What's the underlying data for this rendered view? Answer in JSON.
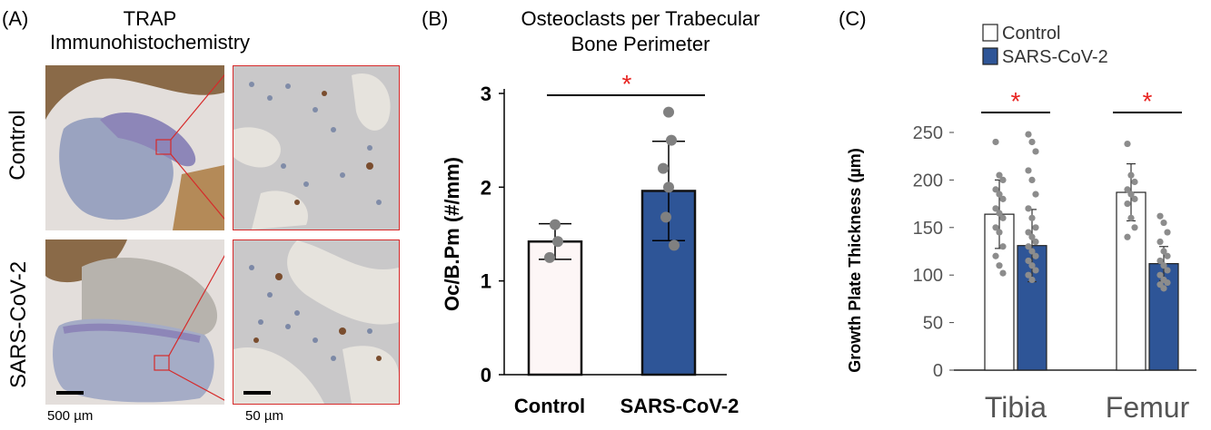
{
  "panel_a": {
    "letter": "(A)",
    "title": "TRAP Immunohistochemistry",
    "row_labels": [
      "Control",
      "SARS-CoV-2"
    ],
    "scale_labels": [
      "500 µm",
      "50 µm"
    ]
  },
  "panel_b": {
    "letter": "(B)"
  },
  "panel_c": {
    "letter": "(C)"
  },
  "chart_data": [
    {
      "type": "bar",
      "title": "Osteoclasts per Trabecular Bone Perimeter",
      "title_lines": [
        "Osteoclasts per Trabecular",
        "Bone Perimeter"
      ],
      "ylabel": "Oc/B.Pm (#/mm)",
      "ylim": [
        0,
        3
      ],
      "yticks": [
        0,
        1,
        2,
        3
      ],
      "categories": [
        "Control",
        "SARS-CoV-2"
      ],
      "values": [
        1.42,
        1.96
      ],
      "error": [
        0.19,
        0.53
      ],
      "points": [
        [
          1.6,
          1.42,
          1.25
        ],
        [
          2.8,
          2.5,
          2.2,
          2.0,
          1.68,
          1.38
        ]
      ],
      "bar_colors": [
        "#fdf6f6",
        "#2e5597"
      ],
      "significance": "*",
      "significance_color": "#e8221f"
    },
    {
      "type": "bar",
      "ylabel": "Growth Plate Thickness (µm)",
      "ylim": [
        0,
        250
      ],
      "yticks": [
        0,
        50,
        100,
        150,
        200,
        250
      ],
      "categories": [
        "Tibia",
        "Femur"
      ],
      "legend": {
        "position": "top",
        "entries": [
          "Control",
          "SARS-CoV-2"
        ]
      },
      "series": [
        {
          "name": "Control",
          "values": [
            164,
            187
          ],
          "error": [
            36,
            30
          ],
          "color": "#ffffff",
          "points": [
            [
              240,
              205,
              200,
              190,
              185,
              180,
              170,
              165,
              160,
              150,
              145,
              130,
              120,
              110,
              102
            ],
            [
              238,
              205,
              198,
              190,
              185,
              180,
              175,
              160,
              150,
              140
            ]
          ]
        },
        {
          "name": "SARS-CoV-2",
          "values": [
            131,
            112
          ],
          "error": [
            38,
            18
          ],
          "color": "#2e5597",
          "points": [
            [
              248,
              240,
              230,
              210,
              200,
              185,
              170,
              160,
              150,
              145,
              140,
              135,
              130,
              125,
              120,
              115,
              110,
              105,
              100,
              95
            ],
            [
              162,
              155,
              145,
              135,
              125,
              120,
              115,
              110,
              105,
              100,
              95,
              92,
              90,
              86
            ]
          ]
        }
      ],
      "significance": [
        "*",
        "*"
      ],
      "significance_color": "#e8221f"
    }
  ]
}
